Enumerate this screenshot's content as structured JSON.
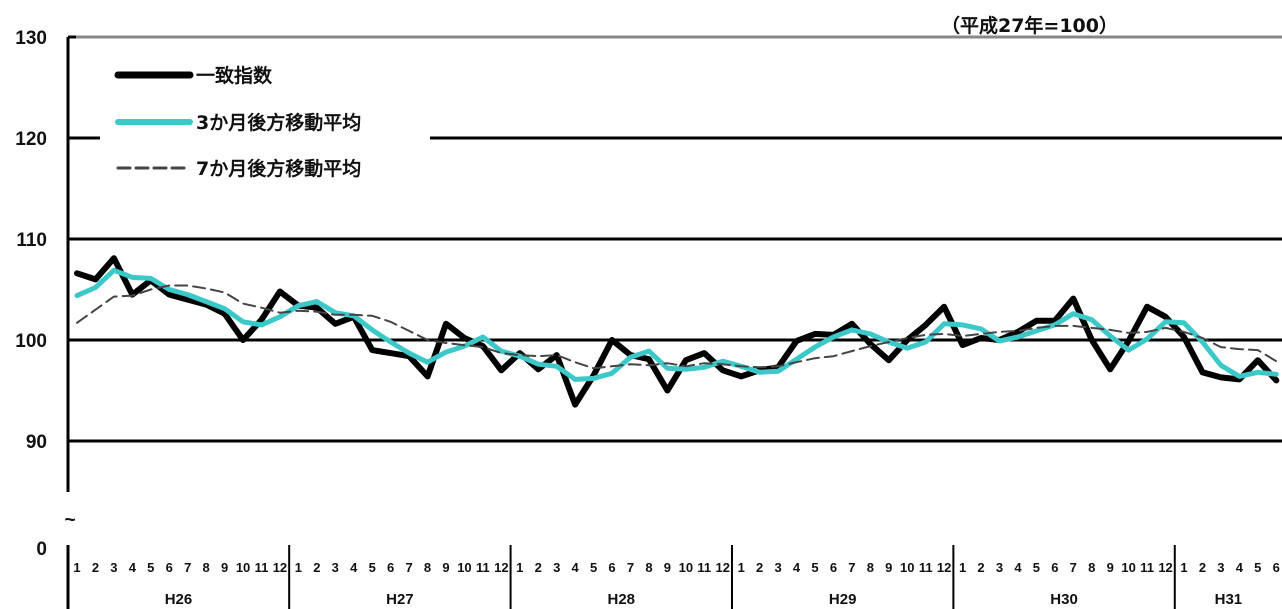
{
  "chart_data": {
    "type": "line",
    "note": "（平成27年=100）",
    "y_ticks": [
      "130",
      "120",
      "110",
      "100",
      "90",
      "0"
    ],
    "axis_break": "~",
    "ylim": [
      90,
      130
    ],
    "grid": true,
    "legend_position": "top-left",
    "months": [
      "1",
      "2",
      "3",
      "4",
      "5",
      "6",
      "7",
      "8",
      "9",
      "10",
      "11",
      "12",
      "1",
      "2",
      "3",
      "4",
      "5",
      "6",
      "7",
      "8",
      "9",
      "10",
      "11",
      "12",
      "1",
      "2",
      "3",
      "4",
      "5",
      "6",
      "7",
      "8",
      "9",
      "10",
      "11",
      "12",
      "1",
      "2",
      "3",
      "4",
      "5",
      "6",
      "7",
      "8",
      "9",
      "10",
      "11",
      "12",
      "1",
      "2",
      "3",
      "4",
      "5",
      "6",
      "7",
      "8",
      "9",
      "10",
      "11",
      "12",
      "1",
      "2",
      "3",
      "4",
      "5",
      "6"
    ],
    "years": [
      "H26",
      "H27",
      "H28",
      "H29",
      "H30",
      "H31"
    ],
    "series": [
      {
        "name": "一致指数",
        "color": "#000000",
        "values": [
          106.6,
          106.0,
          108.1,
          104.5,
          105.9,
          104.5,
          104.0,
          103.5,
          102.6,
          100.0,
          102.0,
          104.8,
          103.4,
          103.2,
          101.6,
          102.3,
          99.0,
          98.7,
          98.4,
          96.4,
          101.6,
          100.2,
          99.4,
          97.0,
          98.7,
          97.1,
          98.5,
          93.6,
          96.5,
          100.0,
          98.5,
          98.1,
          95.0,
          98.0,
          98.7,
          97.0,
          96.4,
          97.0,
          97.3,
          99.9,
          100.6,
          100.5,
          101.6,
          99.6,
          98.0,
          100.0,
          101.5,
          103.3,
          99.5,
          100.2,
          100.0,
          100.8,
          101.9,
          101.9,
          104.1,
          100.0,
          97.1,
          99.9,
          103.3,
          102.3,
          100.3,
          96.8,
          96.3,
          96.1,
          98.0,
          96.0
        ]
      },
      {
        "name": "3か月後方移動平均",
        "color": "#3cc8c8",
        "values": [
          104.4,
          105.2,
          106.9,
          106.2,
          106.1,
          105.0,
          104.5,
          103.8,
          103.1,
          101.8,
          101.5,
          102.3,
          103.4,
          103.8,
          102.7,
          102.4,
          101.0,
          99.8,
          98.7,
          97.8,
          98.8,
          99.4,
          100.3,
          98.9,
          98.4,
          97.6,
          97.4,
          96.1,
          96.2,
          96.7,
          98.3,
          98.9,
          97.2,
          97.1,
          97.3,
          97.9,
          97.4,
          96.8,
          96.9,
          98.1,
          99.3,
          100.3,
          101.0,
          100.6,
          99.8,
          99.2,
          99.8,
          101.6,
          101.5,
          101.1,
          99.9,
          100.3,
          100.9,
          101.5,
          102.6,
          102.0,
          100.4,
          99.0,
          100.1,
          101.8,
          101.7,
          99.8,
          97.5,
          96.4,
          96.8,
          96.6
        ]
      },
      {
        "name": "7か月後方移動平均",
        "color": "#444444",
        "values": [
          101.7,
          103.0,
          104.3,
          104.4,
          105.0,
          105.4,
          105.4,
          105.1,
          104.7,
          103.6,
          103.2,
          102.7,
          102.9,
          102.8,
          102.5,
          102.5,
          102.4,
          101.8,
          100.9,
          100.0,
          99.7,
          99.5,
          99.3,
          98.7,
          98.5,
          98.4,
          98.5,
          97.8,
          97.2,
          97.4,
          97.6,
          97.5,
          97.7,
          97.4,
          97.7,
          97.6,
          97.4,
          97.3,
          97.4,
          97.8,
          98.2,
          98.4,
          98.9,
          99.4,
          99.8,
          100.2,
          100.5,
          100.6,
          100.4,
          100.6,
          100.8,
          100.9,
          101.2,
          101.4,
          101.4,
          101.2,
          101.0,
          100.7,
          100.8,
          101.2,
          100.8,
          100.2,
          99.3,
          99.1,
          99.0,
          97.9
        ]
      }
    ]
  }
}
